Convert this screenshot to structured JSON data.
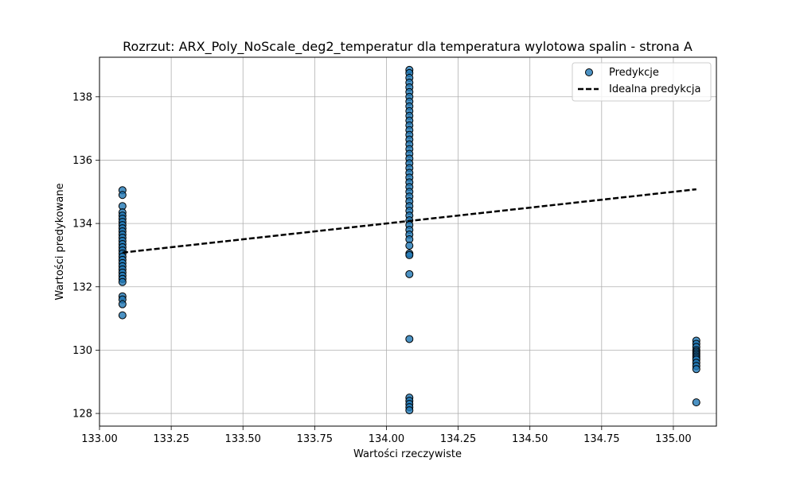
{
  "chart_data": {
    "type": "scatter",
    "title": "Rozrzut: ARX_Poly_NoScale_deg2_temperatur dla temperatura wylotowa spalin - strona A",
    "xlabel": "Wartości rzeczywiste",
    "ylabel": "Wartości predykowane",
    "xlim": [
      133.0,
      135.15
    ],
    "ylim": [
      127.6,
      139.25
    ],
    "xticks": [
      "133.00",
      "133.25",
      "133.50",
      "133.75",
      "134.00",
      "134.25",
      "134.50",
      "134.75",
      "135.00"
    ],
    "yticks": [
      "128",
      "130",
      "132",
      "134",
      "136",
      "138"
    ],
    "grid": true,
    "legend_position": "top-right",
    "colors": {
      "points": "#1f77b4",
      "point_edge": "#000000",
      "ideal_line": "#000000"
    },
    "series": [
      {
        "name": "Predykcje",
        "kind": "scatter",
        "points": [
          [
            133.08,
            135.05
          ],
          [
            133.08,
            134.9
          ],
          [
            133.08,
            134.55
          ],
          [
            133.08,
            134.35
          ],
          [
            133.08,
            134.25
          ],
          [
            133.08,
            134.15
          ],
          [
            133.08,
            134.05
          ],
          [
            133.08,
            133.95
          ],
          [
            133.08,
            133.85
          ],
          [
            133.08,
            133.75
          ],
          [
            133.08,
            133.65
          ],
          [
            133.08,
            133.55
          ],
          [
            133.08,
            133.45
          ],
          [
            133.08,
            133.35
          ],
          [
            133.08,
            133.25
          ],
          [
            133.08,
            133.15
          ],
          [
            133.08,
            133.05
          ],
          [
            133.08,
            132.95
          ],
          [
            133.08,
            132.85
          ],
          [
            133.08,
            132.75
          ],
          [
            133.08,
            132.65
          ],
          [
            133.08,
            132.55
          ],
          [
            133.08,
            132.45
          ],
          [
            133.08,
            132.35
          ],
          [
            133.08,
            132.25
          ],
          [
            133.08,
            132.15
          ],
          [
            133.08,
            131.7
          ],
          [
            133.08,
            131.6
          ],
          [
            133.08,
            131.45
          ],
          [
            133.08,
            131.1
          ],
          [
            134.08,
            138.85
          ],
          [
            134.08,
            138.75
          ],
          [
            134.08,
            138.6
          ],
          [
            134.08,
            138.45
          ],
          [
            134.08,
            138.3
          ],
          [
            134.08,
            138.15
          ],
          [
            134.08,
            138.0
          ],
          [
            134.08,
            137.85
          ],
          [
            134.08,
            137.7
          ],
          [
            134.08,
            137.55
          ],
          [
            134.08,
            137.4
          ],
          [
            134.08,
            137.25
          ],
          [
            134.08,
            137.1
          ],
          [
            134.08,
            136.95
          ],
          [
            134.08,
            136.8
          ],
          [
            134.08,
            136.65
          ],
          [
            134.08,
            136.5
          ],
          [
            134.08,
            136.35
          ],
          [
            134.08,
            136.2
          ],
          [
            134.08,
            136.05
          ],
          [
            134.08,
            135.9
          ],
          [
            134.08,
            135.75
          ],
          [
            134.08,
            135.6
          ],
          [
            134.08,
            135.45
          ],
          [
            134.08,
            135.3
          ],
          [
            134.08,
            135.15
          ],
          [
            134.08,
            135.0
          ],
          [
            134.08,
            134.85
          ],
          [
            134.08,
            134.7
          ],
          [
            134.08,
            134.55
          ],
          [
            134.08,
            134.4
          ],
          [
            134.08,
            134.25
          ],
          [
            134.08,
            134.1
          ],
          [
            134.08,
            133.95
          ],
          [
            134.08,
            133.8
          ],
          [
            134.08,
            133.65
          ],
          [
            134.08,
            133.5
          ],
          [
            134.08,
            133.3
          ],
          [
            134.08,
            133.05
          ],
          [
            134.08,
            133.0
          ],
          [
            134.08,
            132.4
          ],
          [
            134.08,
            130.35
          ],
          [
            134.08,
            128.5
          ],
          [
            134.08,
            128.4
          ],
          [
            134.08,
            128.3
          ],
          [
            134.08,
            128.2
          ],
          [
            134.08,
            128.1
          ],
          [
            135.08,
            130.3
          ],
          [
            135.08,
            130.2
          ],
          [
            135.08,
            130.1
          ],
          [
            135.08,
            130.0
          ],
          [
            135.08,
            129.95
          ],
          [
            135.08,
            129.9
          ],
          [
            135.08,
            129.85
          ],
          [
            135.08,
            129.8
          ],
          [
            135.08,
            129.75
          ],
          [
            135.08,
            129.7
          ],
          [
            135.08,
            129.6
          ],
          [
            135.08,
            129.5
          ],
          [
            135.08,
            129.4
          ],
          [
            135.08,
            128.35
          ]
        ]
      },
      {
        "name": "Idealna predykcja",
        "kind": "line",
        "dashed": true,
        "points": [
          [
            133.08,
            133.08
          ],
          [
            135.08,
            135.08
          ]
        ]
      }
    ]
  }
}
